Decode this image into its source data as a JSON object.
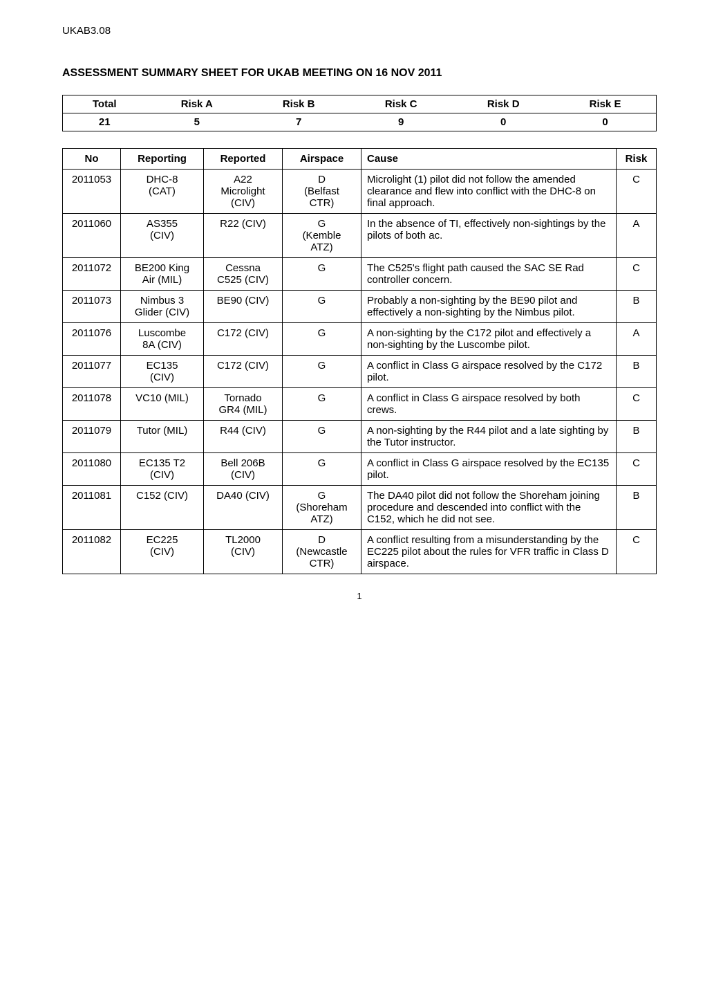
{
  "doc_id": "UKAB3.08",
  "title": "ASSESSMENT SUMMARY SHEET FOR UKAB MEETING ON 16 NOV 2011",
  "summary": {
    "headers": [
      "Total",
      "Risk A",
      "Risk B",
      "Risk C",
      "Risk D",
      "Risk E"
    ],
    "values": [
      "21",
      "5",
      "7",
      "9",
      "0",
      "0"
    ]
  },
  "assessment": {
    "headers": {
      "no": "No",
      "reporting": "Reporting",
      "reported": "Reported",
      "airspace": "Airspace",
      "cause": "Cause",
      "risk": "Risk"
    },
    "rows": [
      {
        "no": "2011053",
        "reporting": "DHC-8\n(CAT)",
        "reported": "A22\nMicrolight\n(CIV)",
        "airspace": "D\n(Belfast\nCTR)",
        "cause": "Microlight (1) pilot did not follow the amended clearance and flew into conflict with the DHC-8 on final approach.",
        "risk": "C"
      },
      {
        "no": "2011060",
        "reporting": "AS355\n(CIV)",
        "reported": "R22 (CIV)",
        "airspace": "G\n(Kemble\nATZ)",
        "cause": "In the absence of TI, effectively non-sightings by the pilots of both ac.",
        "risk": "A"
      },
      {
        "no": "2011072",
        "reporting": "BE200 King\nAir (MIL)",
        "reported": "Cessna\nC525 (CIV)",
        "airspace": "G",
        "cause": "The C525's flight path caused the SAC SE Rad controller concern.",
        "risk": "C"
      },
      {
        "no": "2011073",
        "reporting": "Nimbus 3\nGlider (CIV)",
        "reported": "BE90 (CIV)",
        "airspace": "G",
        "cause": "Probably a non-sighting by the BE90 pilot and effectively a non-sighting by the Nimbus pilot.",
        "risk": "B"
      },
      {
        "no": "2011076",
        "reporting": "Luscombe\n8A (CIV)",
        "reported": "C172 (CIV)",
        "airspace": "G",
        "cause": "A non-sighting by the C172 pilot and effectively a non-sighting by the Luscombe pilot.",
        "risk": "A"
      },
      {
        "no": "2011077",
        "reporting": "EC135\n(CIV)",
        "reported": "C172 (CIV)",
        "airspace": "G",
        "cause": "A conflict in Class G airspace resolved by the C172 pilot.",
        "risk": "B"
      },
      {
        "no": "2011078",
        "reporting": "VC10 (MIL)",
        "reported": "Tornado\nGR4 (MIL)",
        "airspace": "G",
        "cause": "A conflict in Class G airspace resolved by both crews.",
        "risk": "C"
      },
      {
        "no": "2011079",
        "reporting": "Tutor (MIL)",
        "reported": "R44 (CIV)",
        "airspace": "G",
        "cause": "A non-sighting by the R44 pilot and a late sighting by the Tutor instructor.",
        "risk": "B"
      },
      {
        "no": "2011080",
        "reporting": "EC135 T2\n(CIV)",
        "reported": "Bell 206B\n(CIV)",
        "airspace": "G",
        "cause": "A conflict in Class G airspace resolved by the EC135 pilot.",
        "risk": "C"
      },
      {
        "no": "2011081",
        "reporting": "C152 (CIV)",
        "reported": "DA40 (CIV)",
        "airspace": "G\n(Shoreham\nATZ)",
        "cause": "The DA40 pilot did not follow the Shoreham joining procedure and descended into conflict with the C152, which he did not see.",
        "risk": "B"
      },
      {
        "no": "2011082",
        "reporting": "EC225\n(CIV)",
        "reported": "TL2000\n(CIV)",
        "airspace": "D\n(Newcastle\nCTR)",
        "cause": "A conflict resulting from a misunderstanding by the EC225 pilot about the rules for VFR traffic in Class D airspace.",
        "risk": "C"
      }
    ]
  },
  "page_number": "1"
}
